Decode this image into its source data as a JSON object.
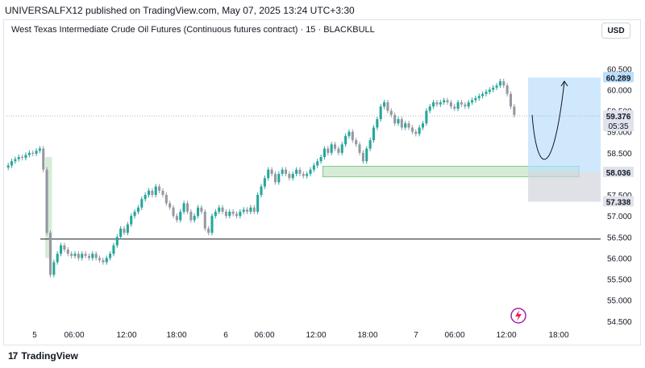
{
  "header": {
    "published_line": "UNIVERSALFX12 published on TradingView.com, May 07, 2025 13:24 UTC+3:30",
    "symbol_line": "West Texas Intermediate Crude Oil Futures (Continuous futures contract) · 15 · BLACKBULL",
    "currency_button": "USD"
  },
  "footer": {
    "brand": "TradingView",
    "logo_icon": "tradingview-logo-icon"
  },
  "colors": {
    "up": "#26a69a",
    "down": "#9598a1",
    "zone_green": "#c8e6c9",
    "zone_blue": "#bbdefb",
    "zone_gray": "#d1d4dc"
  },
  "chart_data": {
    "type": "candlestick",
    "y_ticks": [
      "60.500",
      "60.000",
      "59.500",
      "59.000",
      "58.500",
      "58.000",
      "57.500",
      "57.000",
      "56.500",
      "56.000",
      "55.500",
      "55.000",
      "54.500"
    ],
    "ylim": [
      54.4,
      60.85
    ],
    "x_ticks": [
      "5",
      "06:00",
      "12:00",
      "18:00",
      "6",
      "06:00",
      "12:00",
      "18:00",
      "7",
      "06:00",
      "12:00",
      "18:00"
    ],
    "price_labels": [
      {
        "value": "60.289",
        "price": 60.289,
        "style": "blue"
      },
      {
        "value": "59.376",
        "price": 59.376,
        "style": "gray",
        "countdown": "05:35"
      },
      {
        "value": "58.036",
        "price": 58.036,
        "style": "gray"
      },
      {
        "value": "57.338",
        "price": 57.338,
        "style": "gray"
      }
    ],
    "horizontal_line": 56.45,
    "closes": [
      58.2,
      58.3,
      58.35,
      58.4,
      58.38,
      58.45,
      58.5,
      58.48,
      58.55,
      58.6,
      58.1,
      56.6,
      55.6,
      55.9,
      56.1,
      56.3,
      56.2,
      56.1,
      56.05,
      56.1,
      56.0,
      56.1,
      56.05,
      56.0,
      56.1,
      56.0,
      55.95,
      55.9,
      56.0,
      56.1,
      56.3,
      56.5,
      56.7,
      56.6,
      56.8,
      57.0,
      57.1,
      57.2,
      57.4,
      57.5,
      57.6,
      57.5,
      57.7,
      57.6,
      57.5,
      57.3,
      57.2,
      57.0,
      56.9,
      57.1,
      57.3,
      57.1,
      56.9,
      57.0,
      57.2,
      57.1,
      56.7,
      56.6,
      57.0,
      57.1,
      57.2,
      57.1,
      57.0,
      57.1,
      57.05,
      57.0,
      57.1,
      57.15,
      57.1,
      57.2,
      57.1,
      57.5,
      57.7,
      57.9,
      58.1,
      58.0,
      57.8,
      58.0,
      58.1,
      58.0,
      57.9,
      58.0,
      58.1,
      58.0,
      57.95,
      58.0,
      58.1,
      58.2,
      58.3,
      58.4,
      58.6,
      58.5,
      58.7,
      58.6,
      58.5,
      58.7,
      58.9,
      59.0,
      58.8,
      58.7,
      58.5,
      58.3,
      58.6,
      58.8,
      59.1,
      59.3,
      59.6,
      59.7,
      59.5,
      59.4,
      59.2,
      59.3,
      59.1,
      59.2,
      59.1,
      59.0,
      58.95,
      59.1,
      59.2,
      59.5,
      59.6,
      59.7,
      59.65,
      59.7,
      59.75,
      59.7,
      59.6,
      59.55,
      59.7,
      59.65,
      59.6,
      59.7,
      59.75,
      59.8,
      59.85,
      59.9,
      59.95,
      60.0,
      60.05,
      60.1,
      60.2,
      60.1,
      59.9,
      59.6,
      59.4
    ],
    "zones": [
      {
        "kind": "green-box",
        "x0": 11,
        "x1": 12,
        "y0": 56.0,
        "y1": 58.4
      },
      {
        "kind": "green-box",
        "x0": 90,
        "x1": 165,
        "y0": 57.93,
        "y1": 58.18
      },
      {
        "kind": "projection-blue",
        "x0": 154,
        "x1": 165,
        "y0": 58.036,
        "y1": 60.289
      },
      {
        "kind": "projection-gray",
        "x0": 154,
        "x1": 165,
        "y0": 57.338,
        "y1": 58.036
      }
    ]
  }
}
